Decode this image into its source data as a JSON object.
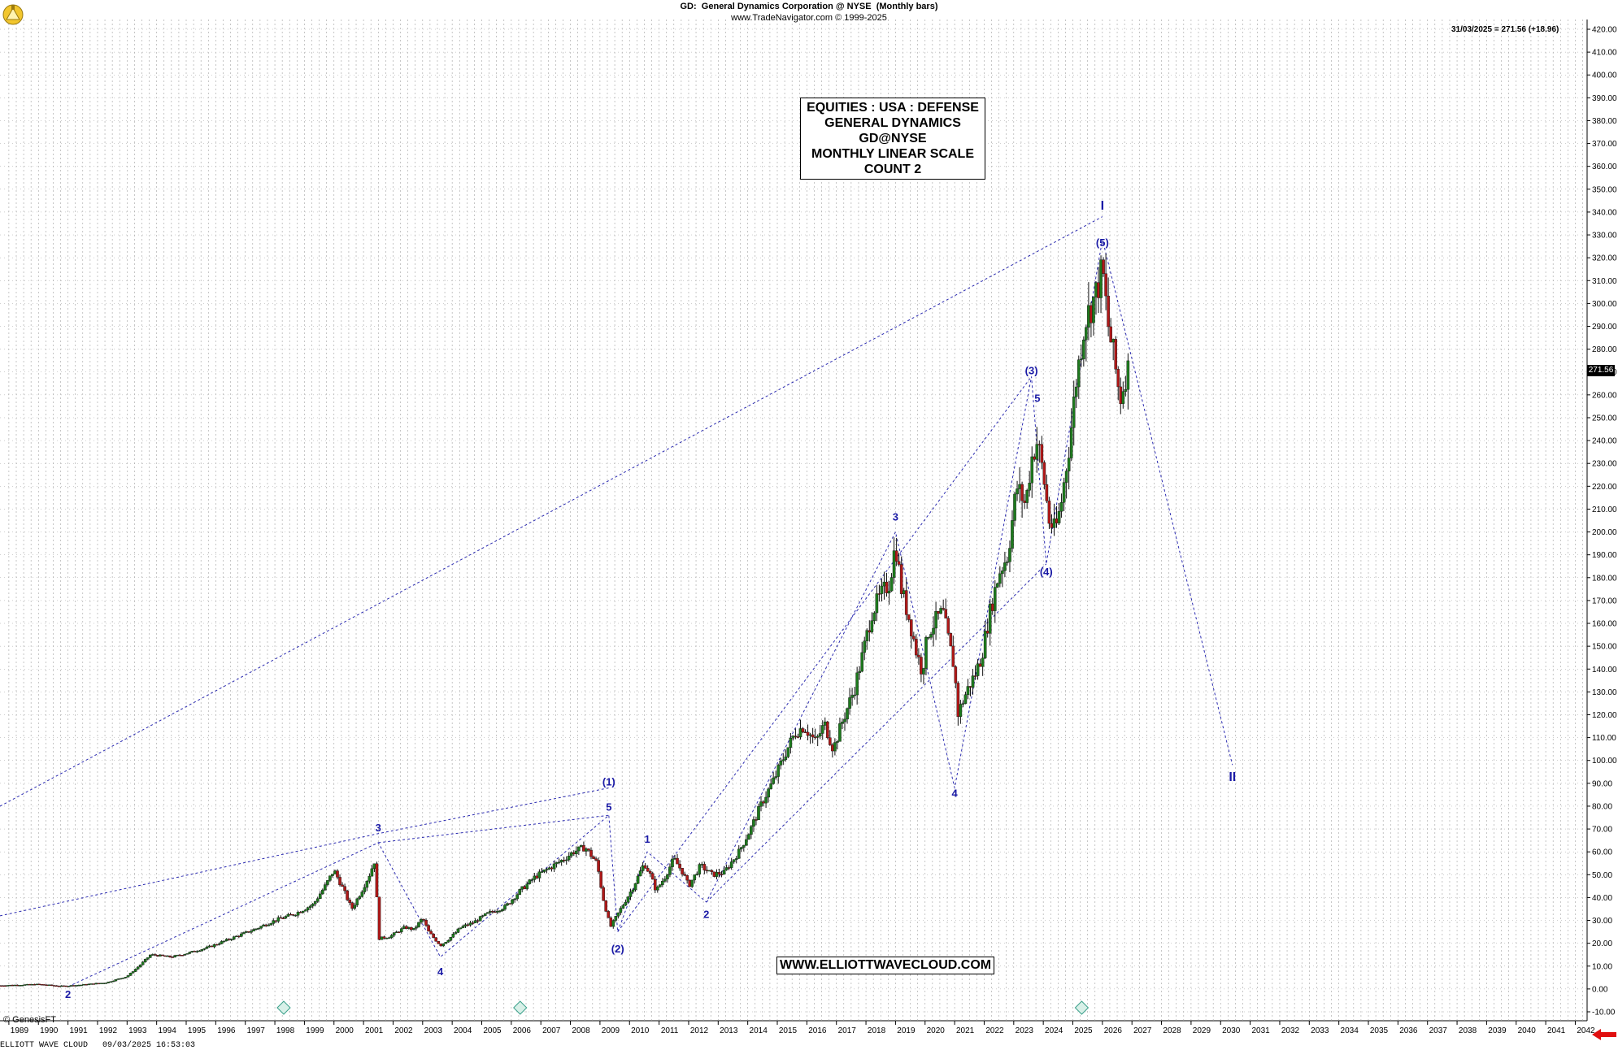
{
  "header": {
    "ticker": "GD:",
    "title": "General Dynamics Corporation @ NYSE",
    "period": "(Monthly bars)",
    "source": "www.TradeNavigator.com © 1999-2025"
  },
  "last_value": "31/03/2025 = 271.56 (+18.96)",
  "price_tag": "271.56",
  "info_box": [
    "EQUITIES : USA : DEFENSE",
    "GENERAL DYNAMICS",
    "GD@NYSE",
    "MONTHLY LINEAR SCALE",
    "COUNT 2"
  ],
  "website": "WWW.ELLIOTTWAVECLOUD.COM",
  "copyright": "© GenesisFT",
  "status_bar": "ELLIOTT WAVE CLOUD   09/03/2025 16:53:03",
  "colors": {
    "wave_label": "#1a1aa6",
    "dotted_line": "#2a2ab0",
    "grid": "#a0a0a0",
    "price_bar": "#111111",
    "up_candle": "#1d7a1d",
    "down_candle": "#b01818",
    "alert_arrow": "#e01010"
  },
  "chart_data": {
    "type": "candlestick-line",
    "x_axis": {
      "unit": "year",
      "labels": [
        1989,
        1990,
        1991,
        1992,
        1993,
        1994,
        1995,
        1996,
        1997,
        1998,
        1999,
        2000,
        2001,
        2002,
        2003,
        2004,
        2005,
        2006,
        2007,
        2008,
        2009,
        2010,
        2011,
        2012,
        2013,
        2014,
        2015,
        2016,
        2017,
        2018,
        2019,
        2020,
        2021,
        2022,
        2023,
        2024,
        2025,
        2026,
        2027,
        2028,
        2029,
        2030,
        2031,
        2032,
        2033,
        2034,
        2035,
        2036,
        2037,
        2038,
        2039,
        2040,
        2041,
        2042
      ]
    },
    "y_axis": {
      "min": -10,
      "max": 420,
      "step": 10,
      "scale": "linear",
      "side": "right"
    },
    "grid": true,
    "price_series": [
      [
        1988.7,
        1.5
      ],
      [
        1990.0,
        2.0
      ],
      [
        1990.8,
        1.2
      ],
      [
        1991.5,
        1.8
      ],
      [
        1992.3,
        2.8
      ],
      [
        1993.0,
        5.5
      ],
      [
        1993.4,
        10
      ],
      [
        1993.8,
        15
      ],
      [
        1994.5,
        14
      ],
      [
        1995.0,
        15.5
      ],
      [
        1995.7,
        18
      ],
      [
        1996.5,
        22
      ],
      [
        1997.3,
        26
      ],
      [
        1998.0,
        30
      ],
      [
        1998.7,
        33
      ],
      [
        1999.3,
        37
      ],
      [
        1999.7,
        45
      ],
      [
        2000.0,
        52
      ],
      [
        2000.3,
        44
      ],
      [
        2000.6,
        35
      ],
      [
        2000.9,
        42
      ],
      [
        2001.2,
        50
      ],
      [
        2001.4,
        57
      ],
      [
        2001.5,
        22
      ],
      [
        2001.9,
        23
      ],
      [
        2002.4,
        27
      ],
      [
        2002.7,
        26
      ],
      [
        2003.0,
        31
      ],
      [
        2003.2,
        25
      ],
      [
        2003.6,
        19
      ],
      [
        2003.9,
        22
      ],
      [
        2004.3,
        27
      ],
      [
        2004.7,
        29
      ],
      [
        2005.2,
        33
      ],
      [
        2005.8,
        36
      ],
      [
        2006.3,
        43
      ],
      [
        2006.8,
        49
      ],
      [
        2007.3,
        53
      ],
      [
        2007.8,
        57
      ],
      [
        2008.1,
        60
      ],
      [
        2008.5,
        62
      ],
      [
        2008.9,
        55
      ],
      [
        2009.1,
        40
      ],
      [
        2009.35,
        27
      ],
      [
        2009.7,
        35
      ],
      [
        2010.1,
        44
      ],
      [
        2010.5,
        55
      ],
      [
        2010.7,
        50
      ],
      [
        2010.9,
        43
      ],
      [
        2011.2,
        49
      ],
      [
        2011.5,
        57
      ],
      [
        2011.8,
        51
      ],
      [
        2012.0,
        45
      ],
      [
        2012.4,
        54
      ],
      [
        2012.8,
        50
      ],
      [
        2013.2,
        51
      ],
      [
        2013.7,
        60
      ],
      [
        2014.1,
        70
      ],
      [
        2014.5,
        82
      ],
      [
        2014.9,
        92
      ],
      [
        2015.3,
        104
      ],
      [
        2015.6,
        112
      ],
      [
        2015.9,
        115
      ],
      [
        2016.3,
        108
      ],
      [
        2016.6,
        116
      ],
      [
        2016.9,
        105
      ],
      [
        2017.2,
        117
      ],
      [
        2017.6,
        131
      ],
      [
        2017.9,
        147
      ],
      [
        2018.2,
        165
      ],
      [
        2018.5,
        172
      ],
      [
        2018.8,
        178
      ],
      [
        2019.0,
        195
      ],
      [
        2019.2,
        175
      ],
      [
        2019.5,
        160
      ],
      [
        2019.7,
        148
      ],
      [
        2019.9,
        139
      ],
      [
        2020.1,
        156
      ],
      [
        2020.4,
        162
      ],
      [
        2020.6,
        165
      ],
      [
        2020.8,
        152
      ],
      [
        2021.0,
        140
      ],
      [
        2021.1,
        120
      ],
      [
        2021.4,
        130
      ],
      [
        2021.7,
        138
      ],
      [
        2021.9,
        145
      ],
      [
        2022.2,
        165
      ],
      [
        2022.5,
        182
      ],
      [
        2022.8,
        190
      ],
      [
        2023.1,
        220
      ],
      [
        2023.4,
        212
      ],
      [
        2023.6,
        232
      ],
      [
        2023.8,
        240
      ],
      [
        2024.0,
        225
      ],
      [
        2024.2,
        205
      ],
      [
        2024.4,
        200
      ],
      [
        2024.6,
        212
      ],
      [
        2024.9,
        240
      ],
      [
        2025.1,
        265
      ],
      [
        2025.4,
        292
      ],
      [
        2025.6,
        298
      ],
      [
        2025.8,
        305
      ],
      [
        2026.0,
        315
      ],
      [
        2026.2,
        290
      ],
      [
        2026.4,
        275
      ],
      [
        2026.6,
        258
      ],
      [
        2026.8,
        270
      ],
      [
        2026.9,
        271.56
      ]
    ],
    "wave_labels": [
      {
        "text": "2",
        "x": 1991.0,
        "y": -4
      },
      {
        "text": "3",
        "x": 2001.5,
        "y": 69
      },
      {
        "text": "4",
        "x": 2003.6,
        "y": 6
      },
      {
        "text": "(1)",
        "x": 2009.3,
        "y": 89
      },
      {
        "text": "5",
        "x": 2009.3,
        "y": 78
      },
      {
        "text": "(2)",
        "x": 2009.6,
        "y": 16
      },
      {
        "text": "1",
        "x": 2010.6,
        "y": 64
      },
      {
        "text": "2",
        "x": 2012.6,
        "y": 31
      },
      {
        "text": "3",
        "x": 2019.0,
        "y": 205
      },
      {
        "text": "4",
        "x": 2021.0,
        "y": 84
      },
      {
        "text": "(3)",
        "x": 2023.6,
        "y": 269
      },
      {
        "text": "5",
        "x": 2023.8,
        "y": 257
      },
      {
        "text": "(4)",
        "x": 2024.1,
        "y": 181
      },
      {
        "text": "I",
        "x": 2026.0,
        "y": 341
      },
      {
        "text": "(5)",
        "x": 2026.0,
        "y": 325
      },
      {
        "text": "II",
        "x": 2030.4,
        "y": 91
      }
    ],
    "wave_paths": [
      [
        [
          1991.0,
          1
        ],
        [
          2001.5,
          64
        ],
        [
          2003.6,
          14
        ],
        [
          2009.3,
          76
        ],
        [
          2009.6,
          25
        ],
        [
          2010.6,
          60
        ],
        [
          2012.6,
          38
        ],
        [
          2019.0,
          200
        ],
        [
          2021.0,
          88
        ],
        [
          2023.6,
          268
        ],
        [
          2024.1,
          186
        ],
        [
          2026.0,
          328
        ],
        [
          2030.4,
          98
        ]
      ],
      [
        [
          1988.7,
          32
        ],
        [
          2001.5,
          68
        ],
        [
          2009.3,
          88
        ]
      ],
      [
        [
          1988.7,
          80
        ],
        [
          2026.0,
          338
        ]
      ],
      [
        [
          2009.6,
          25
        ],
        [
          2023.6,
          268
        ]
      ],
      [
        [
          2001.5,
          64
        ],
        [
          2009.3,
          76
        ]
      ],
      [
        [
          2012.6,
          38
        ],
        [
          2024.1,
          186
        ]
      ]
    ]
  }
}
